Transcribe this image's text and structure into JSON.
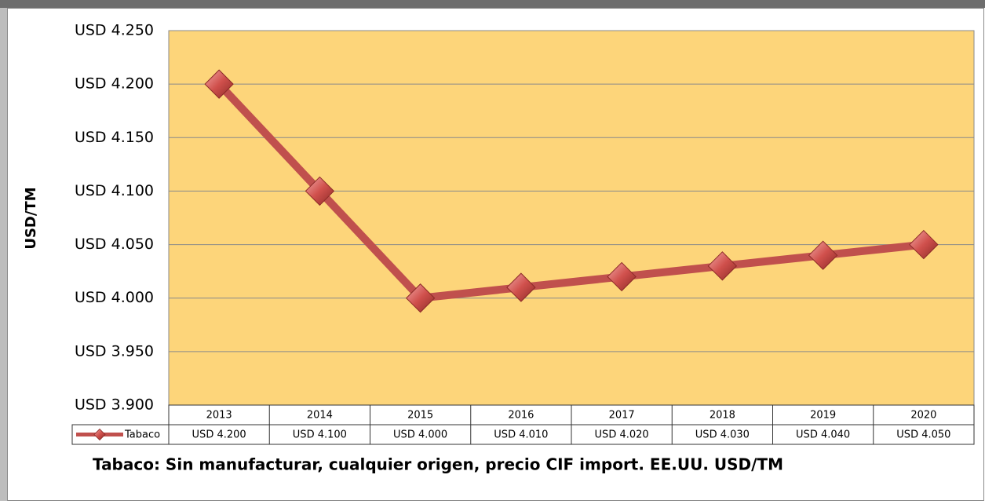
{
  "chart_data": {
    "type": "line",
    "categories": [
      "2013",
      "2014",
      "2015",
      "2016",
      "2017",
      "2018",
      "2019",
      "2020"
    ],
    "series": [
      {
        "name": "Tabaco",
        "color": "#c0504d",
        "values": [
          4200,
          4100,
          4000,
          4010,
          4020,
          4030,
          4040,
          4050
        ],
        "value_labels": [
          "USD 4.200",
          "USD 4.100",
          "USD 4.000",
          "USD 4.010",
          "USD 4.020",
          "USD 4.030",
          "USD 4.040",
          "USD 4.050"
        ]
      }
    ],
    "ylim": [
      3900,
      4250
    ],
    "yticks": [
      {
        "value": 3900,
        "label": "USD 3.900"
      },
      {
        "value": 3950,
        "label": "USD 3.950"
      },
      {
        "value": 4000,
        "label": "USD 4.000"
      },
      {
        "value": 4050,
        "label": "USD 4.050"
      },
      {
        "value": 4100,
        "label": "USD 4.100"
      },
      {
        "value": 4150,
        "label": "USD 4.150"
      },
      {
        "value": 4200,
        "label": "USD 4.200"
      },
      {
        "value": 4250,
        "label": "USD 4.250"
      }
    ],
    "ylabel": "USD/TM",
    "caption": "Tabaco: Sin manufacturar, cualquier origen, precio CIF import. EE.UU. USD/TM",
    "grid": true,
    "plot_background": "#fdd57a"
  }
}
